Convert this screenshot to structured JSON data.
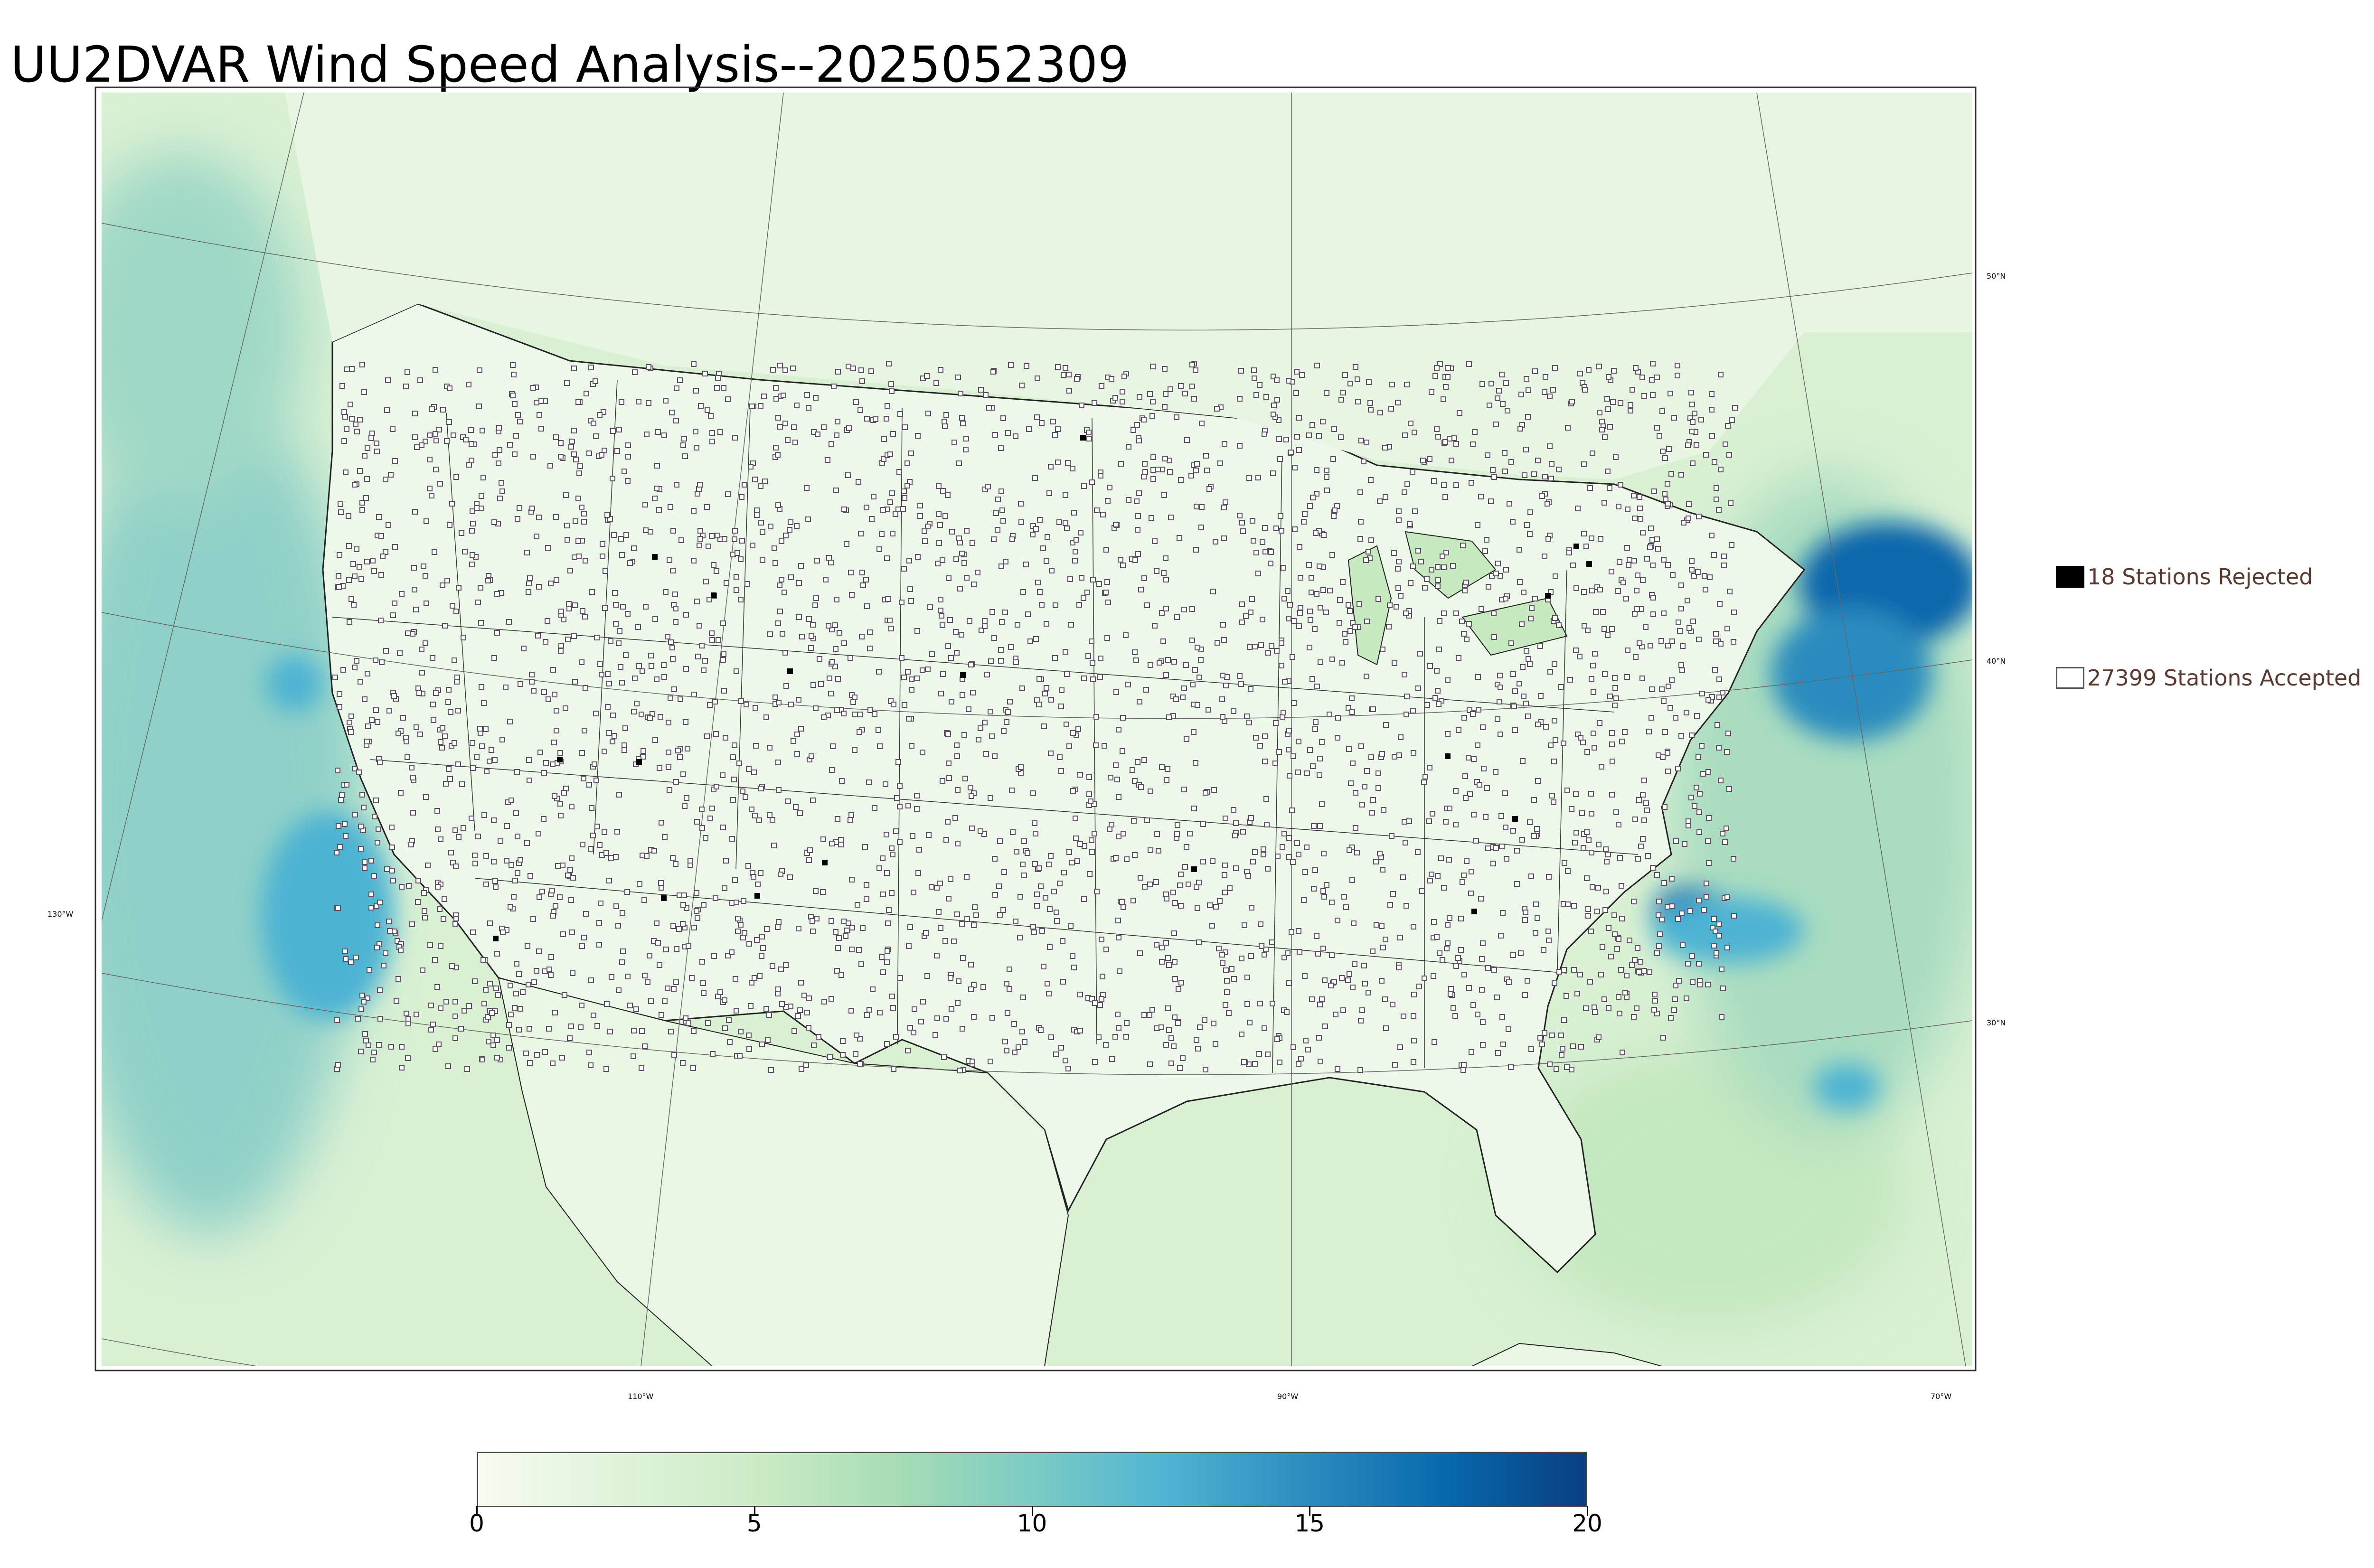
{
  "title": "UU2DVAR Wind Speed Analysis--2025052309",
  "legend": {
    "rejected": {
      "count": "18",
      "label": "18 Stations Rejected"
    },
    "accepted": {
      "count": "27399",
      "label": "27399 Stations Accepted"
    }
  },
  "colorbar": {
    "ticks": [
      "0",
      "5",
      "10",
      "15",
      "20"
    ],
    "min": 0,
    "max": 20,
    "colors": [
      "#f7fcf0",
      "#e0f3db",
      "#ccebc5",
      "#a8ddb5",
      "#7bccc4",
      "#4eb3d3",
      "#2b8cbe",
      "#0868ac",
      "#084081"
    ]
  },
  "coordinate_labels": {
    "lat_50": "50°N",
    "lat_40": "40°N",
    "lat_30": "30°N",
    "lon_130": "130°W",
    "lon_110": "110°W",
    "lon_90": "90°W",
    "lon_70": "70°W"
  },
  "chart_data": {
    "type": "heatmap",
    "title": "UU2DVAR Wind Speed Analysis--2025052309",
    "colorbar_range": [
      0,
      20
    ],
    "colorbar_ticks": [
      0,
      5,
      10,
      15,
      20
    ],
    "series": [
      {
        "name": "18 Stations Rejected",
        "count": 18
      },
      {
        "name": "27399 Stations Accepted",
        "count": 27399
      }
    ]
  },
  "colors": {
    "land_base": "#eaf6e4",
    "ocean_base": "#cfeccb",
    "strong_wind": "#0868ac",
    "moderate_wind": "#4eb3d3",
    "legend_text": "#5a3a30"
  }
}
